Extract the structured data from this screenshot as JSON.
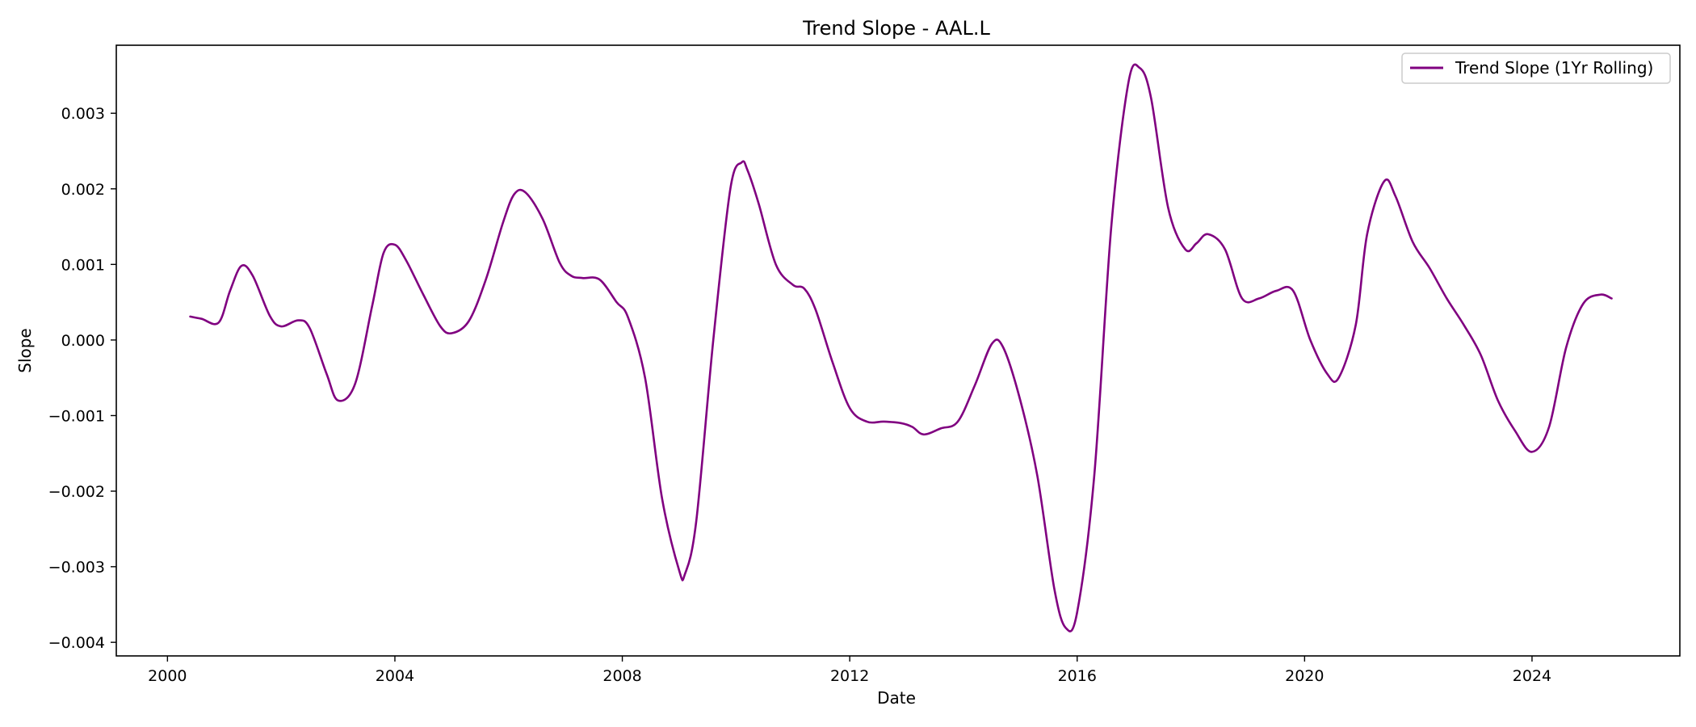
{
  "chart_data": {
    "type": "line",
    "title": "Trend Slope - AAL.L",
    "xlabel": "Date",
    "ylabel": "Slope",
    "xlim": [
      1999.1,
      2026.6
    ],
    "ylim": [
      -0.00418,
      0.0039
    ],
    "x_ticks": [
      2000,
      2004,
      2008,
      2012,
      2016,
      2020,
      2024
    ],
    "x_tick_labels": [
      "2000",
      "2004",
      "2008",
      "2012",
      "2016",
      "2020",
      "2024"
    ],
    "y_ticks": [
      0.003,
      0.002,
      0.001,
      0.0,
      -0.001,
      -0.002,
      -0.003,
      -0.004
    ],
    "y_tick_labels": [
      "0.003",
      "0.002",
      "0.001",
      "0.000",
      "−0.001",
      "−0.002",
      "−0.003",
      "−0.004"
    ],
    "grid": false,
    "legend_position": "top-right",
    "series": [
      {
        "name": "Trend Slope (1Yr Rolling)",
        "color": "#800080",
        "x": [
          2000.4,
          2000.6,
          2000.9,
          2001.1,
          2001.3,
          2001.5,
          2001.8,
          2002.0,
          2002.3,
          2002.5,
          2002.8,
          2003.0,
          2003.3,
          2003.6,
          2003.8,
          2004.0,
          2004.2,
          2004.5,
          2004.8,
          2005.0,
          2005.3,
          2005.6,
          2005.9,
          2006.1,
          2006.3,
          2006.6,
          2006.9,
          2007.1,
          2007.3,
          2007.6,
          2007.9,
          2008.1,
          2008.4,
          2008.7,
          2009.0,
          2009.1,
          2009.3,
          2009.6,
          2009.9,
          2010.1,
          2010.2,
          2010.4,
          2010.7,
          2011.0,
          2011.2,
          2011.4,
          2011.7,
          2012.0,
          2012.3,
          2012.6,
          2012.9,
          2013.1,
          2013.3,
          2013.6,
          2013.9,
          2014.2,
          2014.5,
          2014.7,
          2015.0,
          2015.3,
          2015.6,
          2015.8,
          2016.0,
          2016.3,
          2016.6,
          2016.9,
          2017.1,
          2017.3,
          2017.6,
          2017.9,
          2018.1,
          2018.3,
          2018.6,
          2018.9,
          2019.2,
          2019.5,
          2019.8,
          2020.1,
          2020.4,
          2020.6,
          2020.9,
          2021.1,
          2021.4,
          2021.6,
          2021.9,
          2022.2,
          2022.5,
          2022.8,
          2023.1,
          2023.4,
          2023.7,
          2024.0,
          2024.3,
          2024.6,
          2024.9,
          2025.2,
          2025.4
        ],
        "y": [
          0.00031,
          0.00028,
          0.00023,
          0.00065,
          0.00098,
          0.00085,
          0.00032,
          0.00018,
          0.00026,
          0.00016,
          -0.00045,
          -0.0008,
          -0.00058,
          0.00045,
          0.00115,
          0.00126,
          0.00105,
          0.0006,
          0.00018,
          9e-05,
          0.00025,
          0.0008,
          0.00155,
          0.00193,
          0.00195,
          0.0016,
          0.00102,
          0.00085,
          0.00082,
          0.0008,
          0.0005,
          0.0003,
          -0.0005,
          -0.0021,
          -0.00305,
          -0.0031,
          -0.0024,
          0.0,
          0.002,
          0.00235,
          0.00225,
          0.0018,
          0.001,
          0.00073,
          0.00068,
          0.0004,
          -0.0003,
          -0.0009,
          -0.00108,
          -0.00108,
          -0.0011,
          -0.00115,
          -0.00125,
          -0.00117,
          -0.00108,
          -0.0006,
          -5e-05,
          -0.0001,
          -0.0008,
          -0.0018,
          -0.0033,
          -0.00381,
          -0.0036,
          -0.0018,
          0.0015,
          0.0034,
          0.0036,
          0.0032,
          0.00175,
          0.0012,
          0.00128,
          0.0014,
          0.0012,
          0.00055,
          0.00055,
          0.00065,
          0.00065,
          0.0,
          -0.00045,
          -0.0005,
          0.0002,
          0.0014,
          0.0021,
          0.0019,
          0.0013,
          0.00095,
          0.00055,
          0.0002,
          -0.0002,
          -0.0008,
          -0.0012,
          -0.00148,
          -0.00115,
          -0.0001,
          0.00048,
          0.0006,
          0.00055
        ]
      }
    ]
  }
}
